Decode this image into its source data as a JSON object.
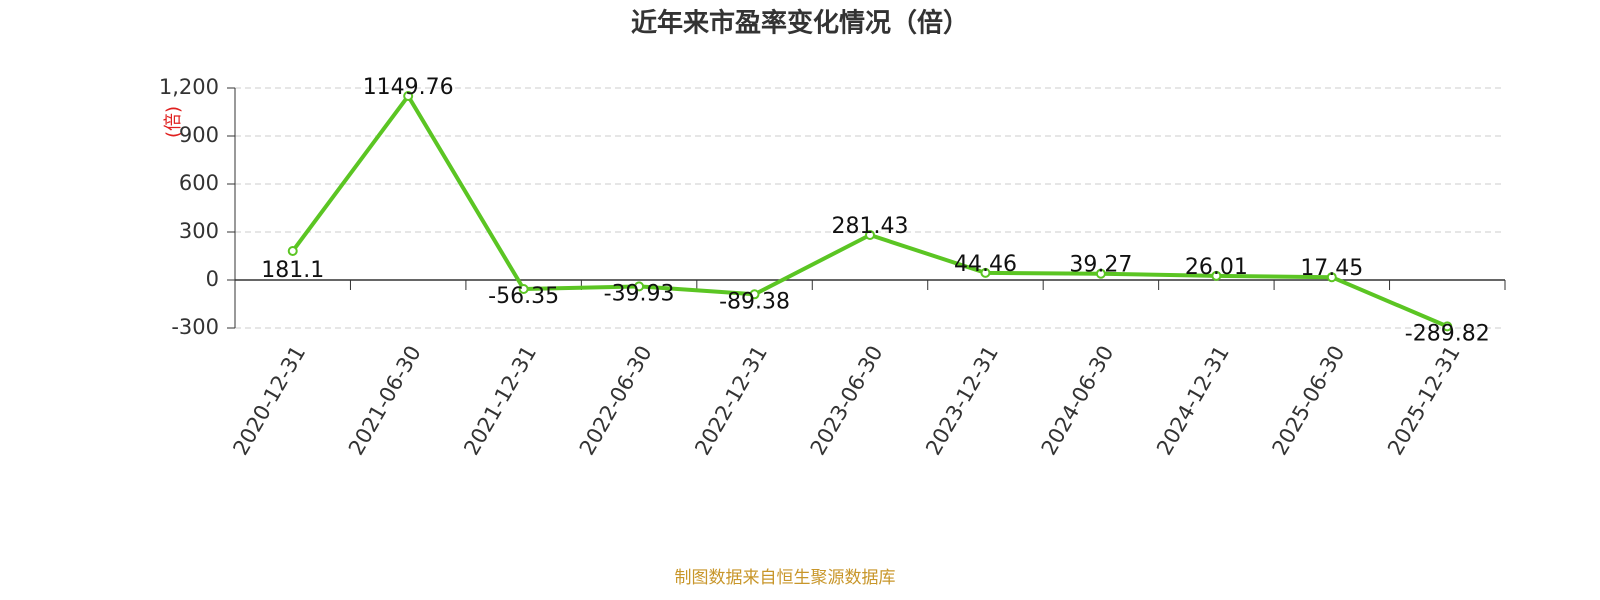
{
  "chart_data": {
    "type": "line",
    "title": "近年来市盈率变化情况（倍）",
    "y_label": "(倍)",
    "source": "制图数据来自恒生聚源数据库",
    "categories": [
      "2020-12-31",
      "2021-06-30",
      "2021-12-31",
      "2022-06-30",
      "2022-12-31",
      "2023-06-30",
      "2023-12-31",
      "2024-06-30",
      "2024-12-31",
      "2025-06-30",
      "2025-12-31"
    ],
    "series": [
      {
        "name": "市盈率",
        "color": "#5bc523",
        "values": [
          181.1,
          1149.76,
          -56.35,
          -39.93,
          -89.38,
          281.43,
          44.46,
          39.27,
          26.01,
          17.45,
          -289.82
        ]
      }
    ],
    "ylim": [
      -300,
      1200
    ],
    "yticks": [
      {
        "value": 1200,
        "label": "1,200"
      },
      900,
      600,
      300,
      0,
      -300
    ],
    "grid": true
  }
}
